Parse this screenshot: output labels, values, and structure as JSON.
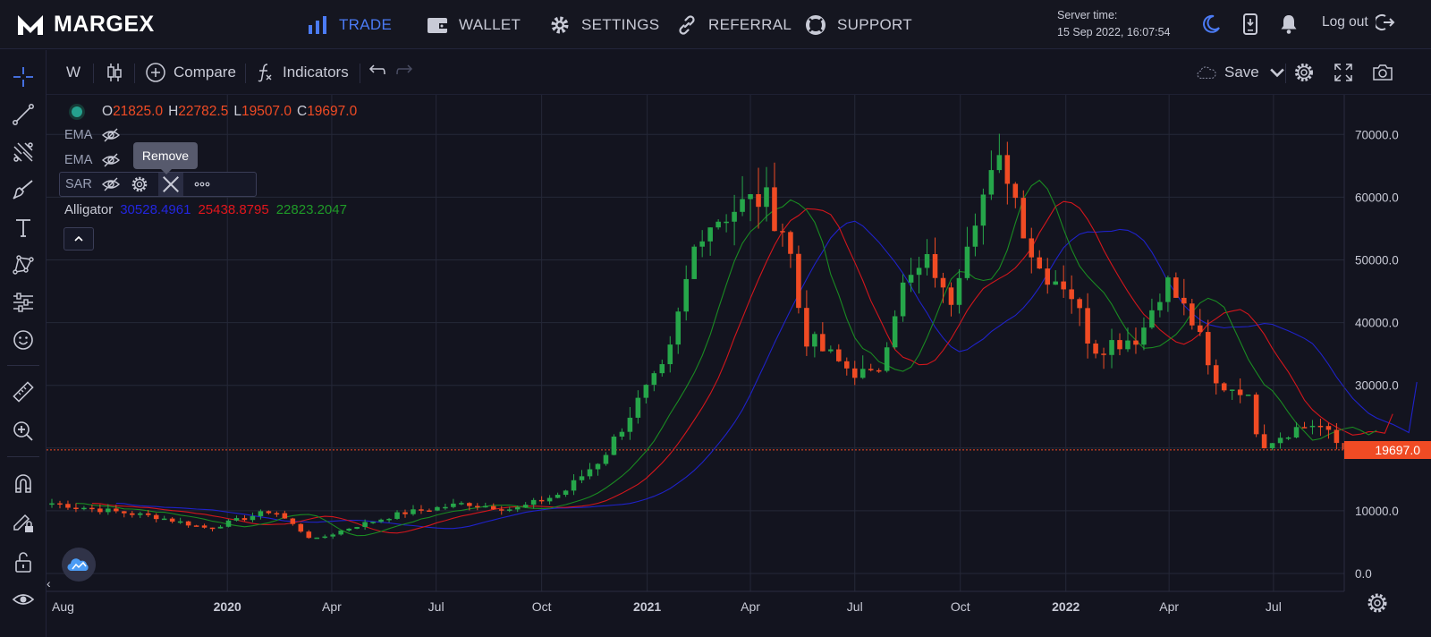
{
  "brand": {
    "name": "MARGEX"
  },
  "nav": {
    "items": [
      {
        "label": "TRADE",
        "active": true
      },
      {
        "label": "WALLET",
        "active": false
      },
      {
        "label": "SETTINGS",
        "active": false
      },
      {
        "label": "REFERRAL",
        "active": false
      },
      {
        "label": "SUPPORT",
        "active": false
      }
    ],
    "server_time_label": "Server time:",
    "server_time_value": "15 Sep 2022, 16:07:54",
    "logout_label": "Log out"
  },
  "chart_toolbar": {
    "interval": "W",
    "compare_label": "Compare",
    "indicators_label": "Indicators",
    "save_label": "Save"
  },
  "legend": {
    "o_key": "O",
    "o_val": "21825.0",
    "h_key": "H",
    "h_val": "22782.5",
    "l_key": "L",
    "l_val": "19507.0",
    "c_key": "C",
    "c_val": "19697.0",
    "ema1": "EMA",
    "ema2": "EMA",
    "sar": "SAR",
    "tooltip": "Remove",
    "alligator_label": "Alligator",
    "alligator_jaw": "30528.4961",
    "alligator_teeth": "25438.8795",
    "alligator_lips": "22823.2047"
  },
  "current_price": "19697.0",
  "colors": {
    "up": "#26a64a",
    "down": "#f04b24",
    "jaw": "#1f22c9",
    "teeth": "#d2161c",
    "lips": "#1a8a22",
    "accent": "#4b7bf5"
  },
  "chart_data": {
    "type": "candlestick",
    "symbol_interval": "W",
    "ylim": [
      0,
      75000
    ],
    "y_ticks": [
      "0.0",
      "10000.0",
      "20000.0",
      "30000.0",
      "40000.0",
      "50000.0",
      "60000.0",
      "70000.0"
    ],
    "x_ticks": [
      "Aug",
      "2020",
      "Apr",
      "Jul",
      "Oct",
      "2021",
      "Apr",
      "Jul",
      "Oct",
      "2022",
      "Apr",
      "Jul"
    ],
    "x_range": [
      "2019-08-01",
      "2022-10-20"
    ],
    "last_close": 19697.0,
    "anchors": [
      [
        "2019-08-01",
        11200
      ],
      [
        "2019-09-15",
        10100
      ],
      [
        "2019-11-01",
        9000
      ],
      [
        "2019-12-15",
        7200
      ],
      [
        "2020-02-10",
        10100
      ],
      [
        "2020-03-16",
        5300
      ],
      [
        "2020-04-20",
        7500
      ],
      [
        "2020-06-01",
        9600
      ],
      [
        "2020-07-27",
        11200
      ],
      [
        "2020-09-07",
        10200
      ],
      [
        "2020-10-19",
        12800
      ],
      [
        "2020-11-23",
        18500
      ],
      [
        "2020-12-28",
        28500
      ],
      [
        "2021-01-18",
        33000
      ],
      [
        "2021-02-15",
        55000
      ],
      [
        "2021-03-15",
        58000
      ],
      [
        "2021-04-12",
        60000
      ],
      [
        "2021-05-03",
        54000
      ],
      [
        "2021-05-17",
        38000
      ],
      [
        "2021-06-21",
        33000
      ],
      [
        "2021-07-19",
        31000
      ],
      [
        "2021-08-09",
        45000
      ],
      [
        "2021-09-06",
        50000
      ],
      [
        "2021-09-20",
        42000
      ],
      [
        "2021-10-11",
        57000
      ],
      [
        "2021-11-08",
        66000
      ],
      [
        "2021-12-06",
        49000
      ],
      [
        "2022-01-03",
        46000
      ],
      [
        "2022-01-24",
        36000
      ],
      [
        "2022-03-07",
        38000
      ],
      [
        "2022-03-28",
        47000
      ],
      [
        "2022-04-25",
        39000
      ],
      [
        "2022-05-09",
        30000
      ],
      [
        "2022-06-06",
        29500
      ],
      [
        "2022-06-20",
        20500
      ],
      [
        "2022-07-18",
        23000
      ],
      [
        "2022-08-08",
        24000
      ],
      [
        "2022-08-29",
        20000
      ],
      [
        "2022-09-12",
        19697
      ]
    ],
    "series": [
      {
        "name": "Alligator Jaw",
        "last": 30528.4961
      },
      {
        "name": "Alligator Teeth",
        "last": 25438.8795
      },
      {
        "name": "Alligator Lips",
        "last": 22823.2047
      }
    ]
  }
}
